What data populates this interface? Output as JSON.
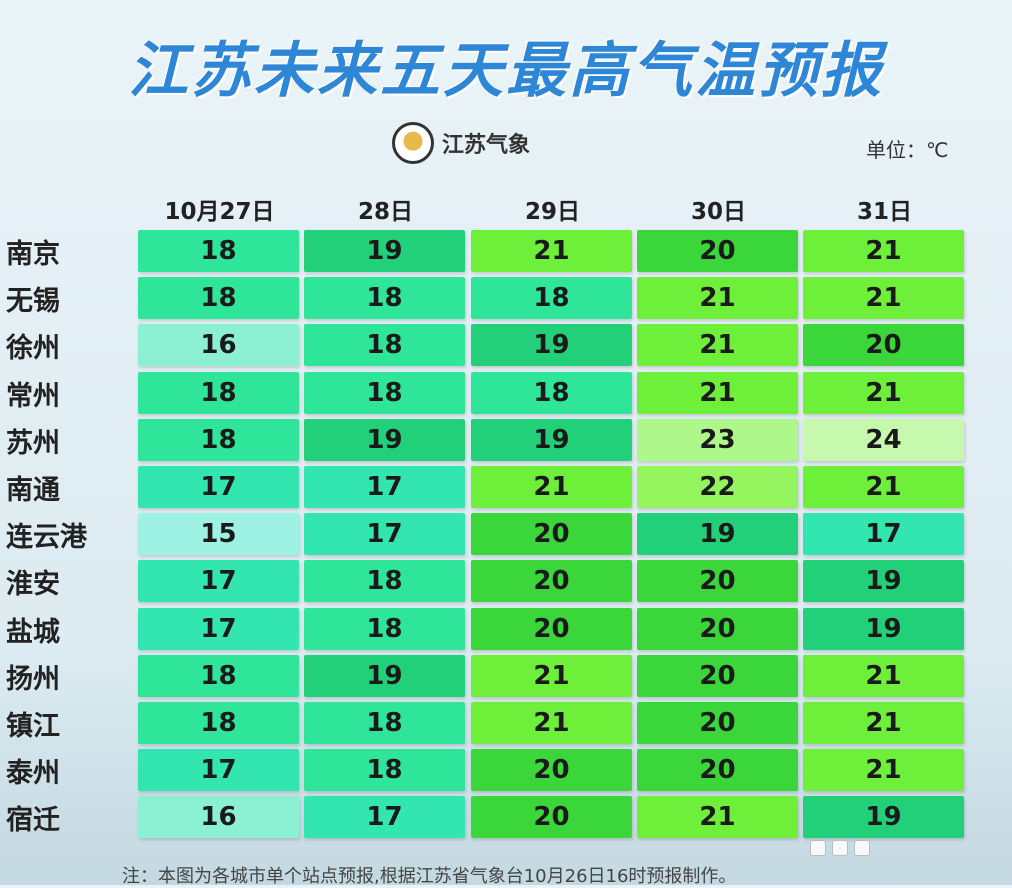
{
  "header": {
    "title": "江苏未来五天最高气温预报",
    "logo_text": "江苏气象",
    "unit": "单位：℃"
  },
  "footnote": "注：本图为各城市单个站点预报,根据江苏省气象台10月26日16时预报制作。",
  "chart_data": {
    "type": "table",
    "columns": [
      "10月27日",
      "28日",
      "29日",
      "30日",
      "31日"
    ],
    "rows": [
      {
        "city": "南京",
        "values": [
          18,
          19,
          21,
          20,
          21
        ]
      },
      {
        "city": "无锡",
        "values": [
          18,
          18,
          18,
          21,
          21
        ]
      },
      {
        "city": "徐州",
        "values": [
          16,
          18,
          19,
          21,
          20
        ]
      },
      {
        "city": "常州",
        "values": [
          18,
          18,
          18,
          21,
          21
        ]
      },
      {
        "city": "苏州",
        "values": [
          18,
          19,
          19,
          23,
          24
        ]
      },
      {
        "city": "南通",
        "values": [
          17,
          17,
          21,
          22,
          21
        ]
      },
      {
        "city": "连云港",
        "values": [
          15,
          17,
          20,
          19,
          17
        ]
      },
      {
        "city": "淮安",
        "values": [
          17,
          18,
          20,
          20,
          19
        ]
      },
      {
        "city": "盐城",
        "values": [
          17,
          18,
          20,
          20,
          19
        ]
      },
      {
        "city": "扬州",
        "values": [
          18,
          19,
          21,
          20,
          21
        ]
      },
      {
        "city": "镇江",
        "values": [
          18,
          18,
          21,
          20,
          21
        ]
      },
      {
        "city": "泰州",
        "values": [
          17,
          18,
          20,
          20,
          21
        ]
      },
      {
        "city": "宿迁",
        "values": [
          16,
          17,
          20,
          21,
          19
        ]
      }
    ],
    "color_scale": {
      "15": "#9df2e4",
      "16": "#8cf0d2",
      "17": "#33e6b0",
      "18": "#2ee59a",
      "19": "#22d07a",
      "20": "#3ad63a",
      "21": "#6ef03a",
      "22": "#95f55e",
      "23": "#aef78a",
      "24": "#c6f9ad"
    }
  }
}
